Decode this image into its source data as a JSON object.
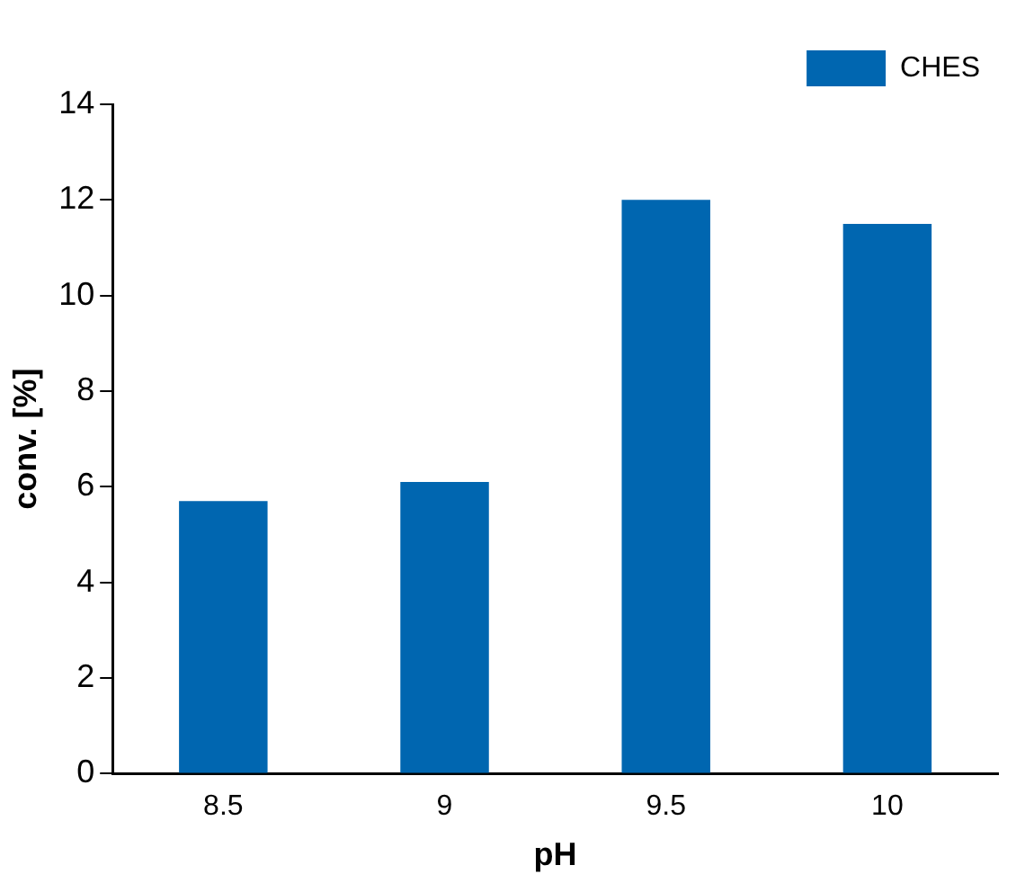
{
  "chart_data": {
    "type": "bar",
    "xlabel": "pH",
    "ylabel": "conv. [%]",
    "categories": [
      "8.5",
      "9",
      "9.5",
      "10"
    ],
    "series": [
      {
        "name": "CHES",
        "color": "#0066b0",
        "values": [
          5.7,
          6.1,
          12.0,
          11.5
        ]
      }
    ],
    "ylim": [
      0,
      14
    ],
    "yticks": [
      0,
      2,
      4,
      6,
      8,
      10,
      12,
      14
    ],
    "grid": false,
    "legend": "top right"
  }
}
